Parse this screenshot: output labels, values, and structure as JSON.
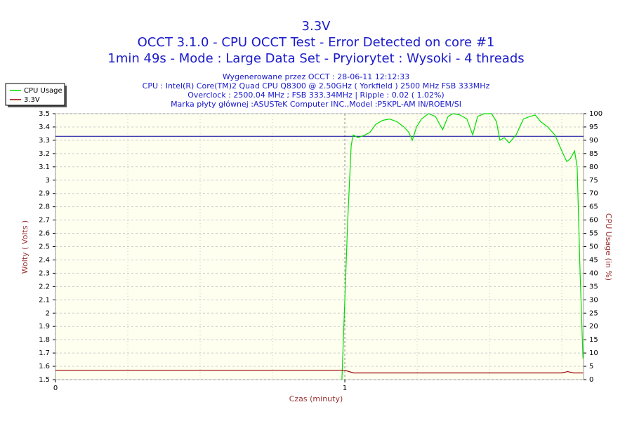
{
  "chart_data": {
    "type": "line",
    "title": "3.3V",
    "subtitle": [
      "OCCT 3.1.0 - CPU OCCT Test - Error Detected on core #1",
      "1min 49s - Mode : Large Data Set - Pryiorytet : Wysoki - 4 threads"
    ],
    "info": [
      "Wygenerowane przez OCCT : 28-06-11 12:12:33",
      "CPU : Intel(R) Core(TM)2 Quad CPU Q8300 @ 2.50GHz ( Yorkfield ) 2500 MHz FSB 333MHz",
      "Overclock : 2500.04 MHz ; FSB 333.34MHz | Ripple : 0.02 ( 1.02%)",
      "Marka płyty głównej :ASUSTeK Computer INC.,Model :P5KPL-AM IN/ROEM/SI"
    ],
    "x_label": "Czas (minuty)",
    "y_label": "Wolty ( Volts )",
    "y2_label": "CPU Usage (in %)",
    "xlim": [
      0,
      1.825
    ],
    "xticks": [
      0,
      1
    ],
    "x_minor_grid": [
      0.25,
      0.5,
      0.75,
      1.25,
      1.5,
      1.75
    ],
    "ylim": [
      1.5,
      3.5
    ],
    "yticks": [
      1.5,
      1.6,
      1.7,
      1.8,
      1.9,
      2,
      2.1,
      2.2,
      2.3,
      2.4,
      2.5,
      2.6,
      2.7,
      2.8,
      2.9,
      3,
      3.1,
      3.2,
      3.3,
      3.4,
      3.5
    ],
    "y2lim": [
      0,
      100
    ],
    "y2ticks": [
      0,
      5,
      10,
      15,
      20,
      25,
      30,
      35,
      40,
      45,
      50,
      55,
      60,
      65,
      70,
      75,
      80,
      85,
      90,
      95,
      100
    ],
    "grid": true,
    "reference_line": {
      "value": 3.33,
      "color": "#000099"
    },
    "legend": "top-left",
    "series": [
      {
        "name": "CPU Usage",
        "color": "#00dd00",
        "axis": "y2",
        "x": [
          0.99,
          1.01,
          1.022,
          1.029,
          1.046,
          1.07,
          1.087,
          1.107,
          1.131,
          1.155,
          1.18,
          1.204,
          1.221,
          1.233,
          1.248,
          1.265,
          1.289,
          1.313,
          1.338,
          1.357,
          1.374,
          1.398,
          1.422,
          1.442,
          1.459,
          1.483,
          1.507,
          1.524,
          1.536,
          1.551,
          1.568,
          1.592,
          1.617,
          1.641,
          1.658,
          1.677,
          1.701,
          1.726,
          1.75,
          1.767,
          1.779,
          1.794,
          1.803,
          1.813,
          1.823
        ],
        "values": [
          0,
          60,
          88,
          92,
          91,
          92,
          93,
          96,
          97.5,
          98,
          97,
          95,
          93,
          90,
          95,
          98,
          100,
          99,
          94,
          99,
          100,
          99.5,
          98,
          92,
          99,
          100,
          100,
          97,
          90,
          91,
          89,
          92,
          98,
          99,
          99.5,
          97,
          95,
          92,
          86,
          82,
          83,
          86,
          80,
          40,
          8
        ]
      },
      {
        "name": "3.3V",
        "color": "#990000",
        "axis": "y",
        "x": [
          0,
          1.0,
          1.03,
          1.75,
          1.77,
          1.79,
          1.823
        ],
        "values": [
          1.57,
          1.57,
          1.55,
          1.55,
          1.56,
          1.55,
          1.55
        ]
      }
    ]
  }
}
